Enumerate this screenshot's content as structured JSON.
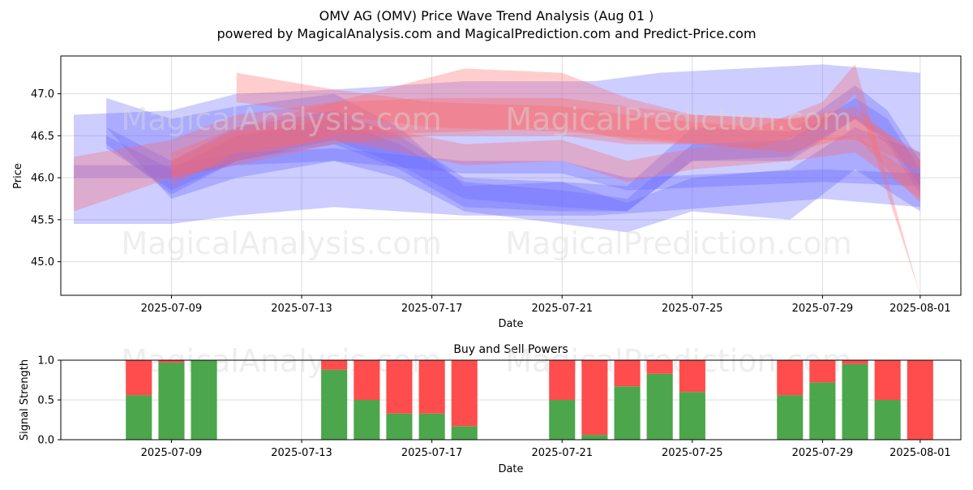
{
  "title_line1": "OMV AG (OMV) Price Wave Trend Analysis (Aug 01 )",
  "title_line2": "powered by MagicalAnalysis.com and MagicalPrediction.com and Predict-Price.com",
  "watermarks": [
    "MagicalAnalysis.com",
    "MagicalPrediction.com"
  ],
  "chart_data": [
    {
      "type": "area",
      "xlabel": "Date",
      "ylabel": "Price",
      "ylim": [
        44.6,
        47.45
      ],
      "xrange": [
        "2025-07-06",
        "2025-08-02"
      ],
      "grid": true,
      "x_ticks": [
        "2025-07-09",
        "2025-07-13",
        "2025-07-17",
        "2025-07-21",
        "2025-07-25",
        "2025-07-29",
        "2025-08-01"
      ],
      "y_ticks": [
        "45.0",
        "45.5",
        "46.0",
        "46.5",
        "47.0"
      ],
      "colors": {
        "blue_band": "#6666ff",
        "red_band": "#ff6666"
      },
      "series": [
        {
          "color": "#6666ff",
          "x": [
            "2025-07-06",
            "2025-07-09",
            "2025-07-11",
            "2025-07-14",
            "2025-07-18",
            "2025-07-22",
            "2025-07-24",
            "2025-07-29",
            "2025-08-01"
          ],
          "upper": [
            46.75,
            46.8,
            47.0,
            47.05,
            47.15,
            47.15,
            47.25,
            47.35,
            47.25
          ],
          "lower": [
            45.45,
            45.45,
            45.55,
            45.65,
            45.55,
            45.55,
            45.6,
            45.75,
            45.65
          ]
        },
        {
          "color": "#6666ff",
          "x": [
            "2025-07-07",
            "2025-07-09",
            "2025-07-11",
            "2025-07-14",
            "2025-07-16",
            "2025-07-18",
            "2025-07-21",
            "2025-07-23",
            "2025-07-25",
            "2025-07-28",
            "2025-07-30",
            "2025-07-31",
            "2025-08-01"
          ],
          "upper": [
            46.6,
            46.2,
            46.6,
            46.8,
            46.5,
            46.0,
            45.95,
            45.9,
            46.6,
            46.55,
            47.1,
            46.8,
            46.2
          ],
          "lower": [
            46.4,
            45.8,
            46.2,
            46.4,
            46.1,
            45.65,
            45.6,
            45.6,
            46.2,
            46.2,
            46.7,
            46.4,
            45.8
          ]
        },
        {
          "color": "#6666ff",
          "x": [
            "2025-07-07",
            "2025-07-09",
            "2025-07-11",
            "2025-07-14",
            "2025-07-16",
            "2025-07-18",
            "2025-07-21",
            "2025-07-23",
            "2025-07-25",
            "2025-07-28",
            "2025-07-30",
            "2025-07-31",
            "2025-08-01"
          ],
          "upper": [
            46.5,
            46.1,
            46.5,
            46.7,
            46.4,
            45.95,
            45.85,
            45.75,
            46.4,
            46.45,
            46.95,
            46.7,
            46.1
          ],
          "lower": [
            46.35,
            45.85,
            46.2,
            46.45,
            46.15,
            45.75,
            45.65,
            45.6,
            46.2,
            46.25,
            46.7,
            46.45,
            45.9
          ]
        },
        {
          "color": "#6666ff",
          "x": [
            "2025-07-06",
            "2025-07-09",
            "2025-07-11",
            "2025-07-14",
            "2025-07-18",
            "2025-07-21",
            "2025-07-23",
            "2025-07-26",
            "2025-07-29",
            "2025-08-01"
          ],
          "upper": [
            46.15,
            46.15,
            46.3,
            46.35,
            46.2,
            46.2,
            46.0,
            46.05,
            46.1,
            46.05
          ],
          "lower": [
            46.0,
            46.0,
            46.15,
            46.2,
            46.05,
            46.05,
            45.85,
            45.9,
            45.95,
            45.9
          ]
        },
        {
          "color": "#6666ff",
          "x": [
            "2025-07-07",
            "2025-07-09",
            "2025-07-11",
            "2025-07-14",
            "2025-07-16",
            "2025-07-18",
            "2025-07-21",
            "2025-07-23",
            "2025-07-25",
            "2025-07-28",
            "2025-07-30",
            "2025-08-01"
          ],
          "upper": [
            46.95,
            46.7,
            46.85,
            47.0,
            46.6,
            45.9,
            45.95,
            45.7,
            46.0,
            46.1,
            46.6,
            46.3
          ],
          "lower": [
            46.6,
            45.75,
            46.0,
            46.2,
            46.0,
            45.6,
            45.45,
            45.35,
            45.6,
            45.5,
            46.1,
            45.6
          ]
        },
        {
          "color": "#ff6666",
          "x": [
            "2025-07-06",
            "2025-07-09",
            "2025-07-11",
            "2025-07-14",
            "2025-07-17",
            "2025-07-21",
            "2025-07-23",
            "2025-07-25",
            "2025-07-28",
            "2025-07-30",
            "2025-08-01"
          ],
          "upper": [
            46.25,
            46.45,
            46.75,
            46.9,
            46.95,
            46.95,
            46.85,
            46.75,
            46.7,
            46.85,
            46.2
          ],
          "lower": [
            45.6,
            46.0,
            46.15,
            46.4,
            46.5,
            46.5,
            46.4,
            46.4,
            46.3,
            46.5,
            45.7
          ]
        },
        {
          "color": "#ff6666",
          "x": [
            "2025-07-09",
            "2025-07-11",
            "2025-07-14",
            "2025-07-18",
            "2025-07-21",
            "2025-07-23",
            "2025-07-25",
            "2025-07-28",
            "2025-07-30",
            "2025-08-01"
          ],
          "upper": [
            46.3,
            46.6,
            46.9,
            47.3,
            47.25,
            46.95,
            46.75,
            46.7,
            46.75,
            46.3
          ],
          "lower": [
            46.0,
            46.2,
            46.5,
            46.55,
            46.6,
            46.45,
            46.4,
            46.45,
            46.45,
            46.1
          ]
        },
        {
          "color": "#ff6666",
          "x": [
            "2025-07-09",
            "2025-07-11",
            "2025-07-14",
            "2025-07-16",
            "2025-07-18",
            "2025-07-21",
            "2025-07-23",
            "2025-07-25",
            "2025-07-28",
            "2025-07-30",
            "2025-08-01"
          ],
          "upper": [
            46.2,
            46.55,
            46.75,
            46.55,
            46.4,
            46.45,
            46.2,
            46.35,
            46.45,
            46.5,
            46.0
          ],
          "lower": [
            45.9,
            46.3,
            46.45,
            46.3,
            46.15,
            46.2,
            45.95,
            46.1,
            46.2,
            46.3,
            45.75
          ]
        },
        {
          "color": "#ff6666",
          "x": [
            "2025-07-11",
            "2025-07-14",
            "2025-07-17",
            "2025-07-21",
            "2025-07-24",
            "2025-07-27",
            "2025-07-29",
            "2025-07-30",
            "2025-08-01"
          ],
          "upper": [
            47.25,
            47.05,
            46.9,
            46.85,
            46.7,
            46.6,
            46.9,
            47.35,
            44.6
          ],
          "lower": [
            46.9,
            46.75,
            46.6,
            46.55,
            46.45,
            46.35,
            46.6,
            47.0,
            44.6
          ]
        }
      ]
    },
    {
      "type": "bar",
      "title": "Buy and Sell Powers",
      "xlabel": "Date",
      "ylabel": "Signal Strength",
      "ylim": [
        0,
        1
      ],
      "y_ticks": [
        "0.0",
        "0.5",
        "1.0"
      ],
      "x_ticks": [
        "2025-07-09",
        "2025-07-13",
        "2025-07-17",
        "2025-07-21",
        "2025-07-25",
        "2025-07-29",
        "2025-08-01"
      ],
      "colors": {
        "buy": "#4ca64c",
        "sell": "#ff4c4c"
      },
      "categories": [
        "2025-07-08",
        "2025-07-09",
        "2025-07-10",
        "2025-07-14",
        "2025-07-15",
        "2025-07-16",
        "2025-07-17",
        "2025-07-18",
        "2025-07-21",
        "2025-07-22",
        "2025-07-23",
        "2025-07-24",
        "2025-07-25",
        "2025-07-28",
        "2025-07-29",
        "2025-07-30",
        "2025-07-31",
        "2025-08-01"
      ],
      "buy": [
        0.56,
        0.97,
        1.0,
        0.88,
        0.5,
        0.33,
        0.33,
        0.17,
        0.5,
        0.06,
        0.67,
        0.83,
        0.6,
        0.56,
        0.72,
        0.95,
        0.5,
        0.0
      ],
      "sell": [
        0.44,
        0.03,
        0.0,
        0.12,
        0.5,
        0.67,
        0.67,
        0.83,
        0.5,
        0.94,
        0.33,
        0.17,
        0.4,
        0.44,
        0.28,
        0.05,
        0.5,
        1.0
      ]
    }
  ]
}
